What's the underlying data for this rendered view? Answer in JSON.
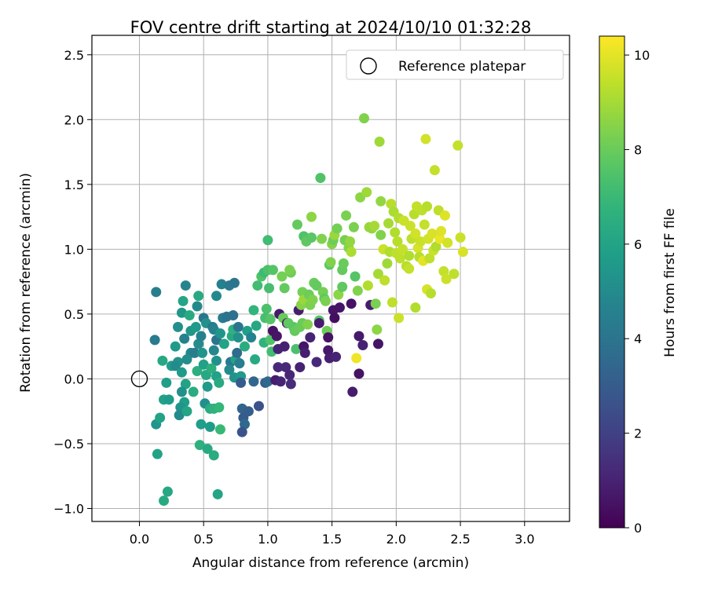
{
  "chart_data": {
    "type": "scatter",
    "title": "FOV centre drift starting at 2024/10/10 01:32:28",
    "xlabel": "Angular distance from reference (arcmin)",
    "ylabel": "Rotation from reference (arcmin)",
    "xlim": [
      -0.37,
      3.35
    ],
    "ylim": [
      -1.1,
      2.65
    ],
    "xticks": [
      0.0,
      0.5,
      1.0,
      1.5,
      2.0,
      2.5,
      3.0
    ],
    "xtick_labels": [
      "0.0",
      "0.5",
      "1.0",
      "1.5",
      "2.0",
      "2.5",
      "3.0"
    ],
    "yticks": [
      -1.0,
      -0.5,
      0.0,
      0.5,
      1.0,
      1.5,
      2.0,
      2.5
    ],
    "ytick_labels": [
      "−1.0",
      "−0.5",
      "0.0",
      "0.5",
      "1.0",
      "1.5",
      "2.0",
      "2.5"
    ],
    "grid": true,
    "legend": {
      "placement": "top-right",
      "entries": [
        "Reference platepar"
      ]
    },
    "reference_point": {
      "x": 0.0,
      "y": 0.0
    },
    "colorbar": {
      "label": "Hours from first FF file",
      "range": [
        0,
        10.4
      ],
      "ticks": [
        0,
        2,
        4,
        6,
        8,
        10
      ],
      "tick_labels": [
        "0",
        "2",
        "4",
        "6",
        "8",
        "10"
      ],
      "colormap": "viridis"
    },
    "points": []
  }
}
